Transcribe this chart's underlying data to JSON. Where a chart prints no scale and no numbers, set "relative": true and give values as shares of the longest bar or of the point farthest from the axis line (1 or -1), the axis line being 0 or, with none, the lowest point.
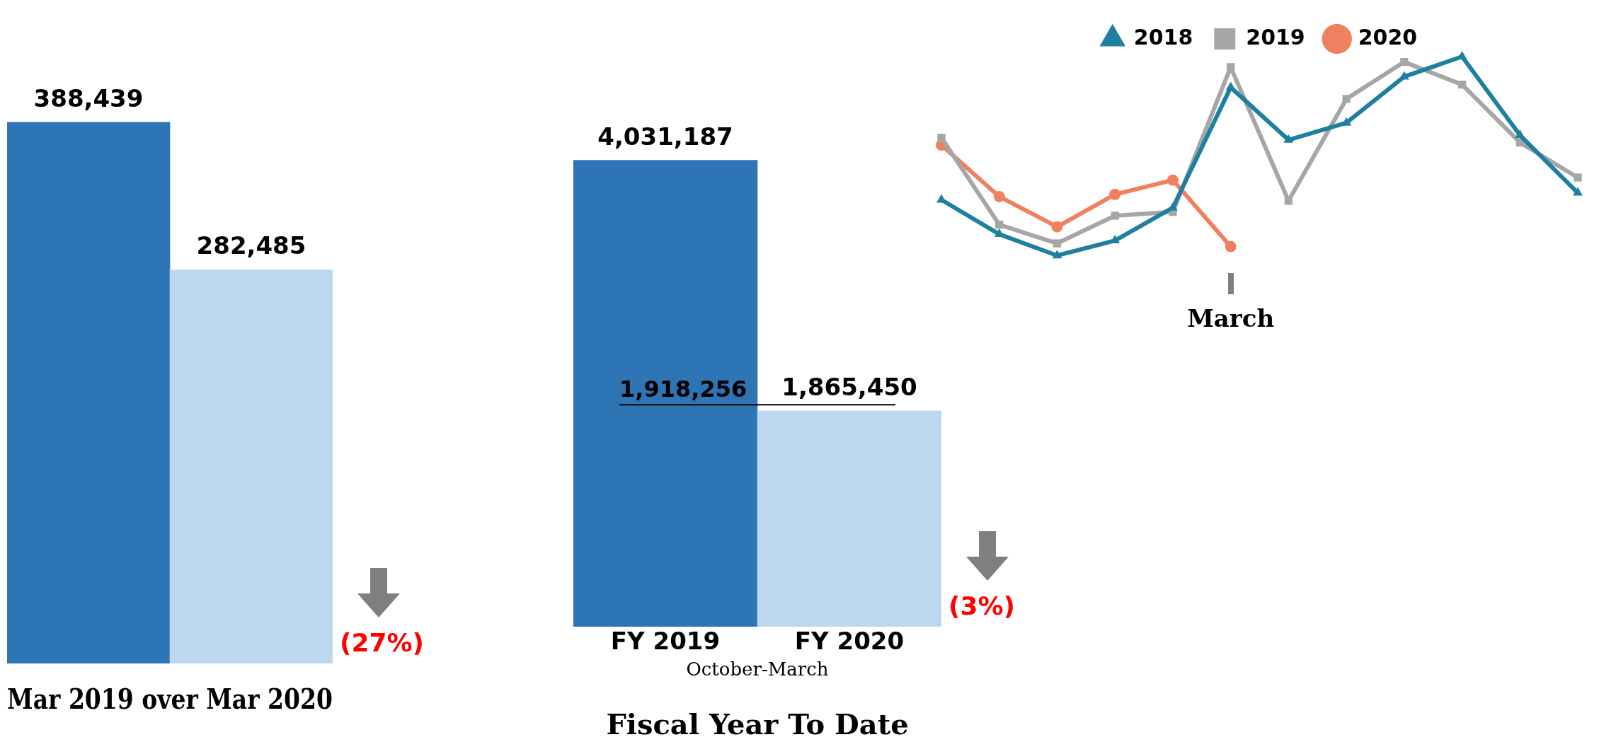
{
  "chart_data": [
    {
      "type": "bar",
      "title": "Mar 2019 over Mar 2020",
      "categories": [
        null,
        null
      ],
      "values": [
        388439,
        282485
      ],
      "value_labels": [
        "388,439",
        "282,485"
      ],
      "colors": [
        "#2e75b6",
        "#bdd7ee"
      ],
      "grid": false,
      "annotations": [
        "(27%)"
      ]
    },
    {
      "type": "bar",
      "title": "Fiscal Year To Date",
      "subtitle": "October-March",
      "categories": [
        "FY 2019",
        "FY 2020"
      ],
      "values": [
        4031187,
        1865450
      ],
      "value_labels": [
        "4,031,187",
        "1,865,450"
      ],
      "colors": [
        "#2e75b6",
        "#bdd7ee"
      ],
      "grid": false,
      "ref_lines": [
        {
          "axis": "y",
          "value": 1918256,
          "label": "1,918,256",
          "color": "#000000"
        }
      ],
      "annotations": [
        "(3%)"
      ]
    },
    {
      "type": "line",
      "relative": true,
      "categories": [
        null,
        null,
        null,
        null,
        null,
        null,
        null,
        null,
        null,
        null,
        null,
        null
      ],
      "annotations": [
        "March"
      ],
      "legend": "top",
      "grid": false,
      "series": [
        {
          "name": "2018",
          "color": "#1f7fa0",
          "marker": "triangle",
          "values": [
            0.28,
            0.107,
            0,
            0.075,
            0.24,
            0.845,
            0.581,
            0.667,
            0.899,
            1,
            0.605,
            0.315
          ]
        },
        {
          "name": "2019",
          "color": "#a6a6a6",
          "marker": "square",
          "values": [
            0.592,
            0.155,
            0.061,
            0.2,
            0.219,
            0.947,
            0.275,
            0.787,
            0.973,
            0.859,
            0.568,
            0.392
          ]
        },
        {
          "name": "2020",
          "color": "#f08060",
          "marker": "circle",
          "values": [
            0.555,
            0.296,
            0.144,
            0.307,
            0.379,
            0.045,
            null,
            null,
            null,
            null,
            null,
            null
          ]
        }
      ]
    }
  ]
}
